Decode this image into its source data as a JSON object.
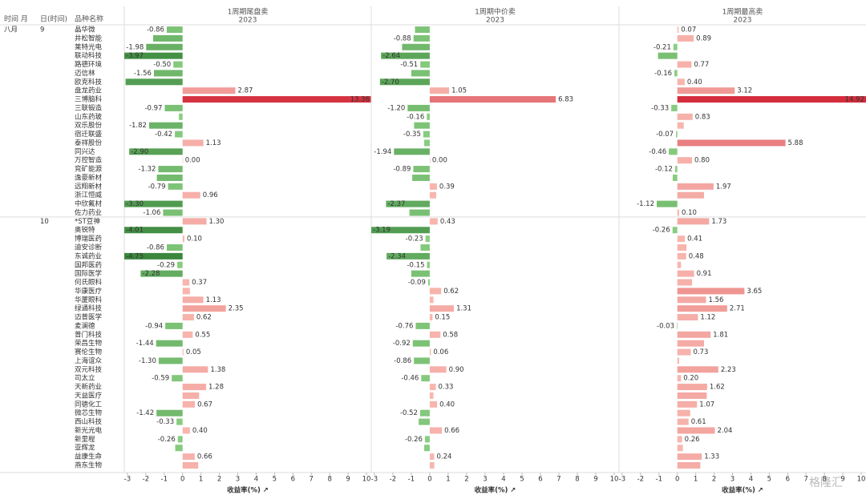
{
  "chart_data": {
    "type": "bar",
    "orientation": "horizontal",
    "row_headers": [
      "时间 月",
      "日(时间)",
      "品种名称"
    ],
    "xlabel": "收益率(%) ↗",
    "watermark": "格隆汇",
    "xlim": [
      -3.17,
      10.26
    ],
    "xticks": [
      -3,
      -2,
      -1,
      0,
      1,
      2,
      3,
      4,
      5,
      6,
      7,
      8,
      9,
      10
    ],
    "colors": {
      "positive_light": "#f8b9b1",
      "positive_dark": "#d42d3c",
      "negative_light": "#8dd184",
      "negative_dark": "#3a873d"
    },
    "months": [
      "八月",
      null,
      null,
      null,
      null,
      null,
      null,
      null,
      null,
      null,
      null,
      null,
      null,
      null,
      null,
      null,
      null,
      null,
      null,
      null,
      null,
      null,
      null,
      null,
      null,
      null,
      null,
      null,
      null,
      null,
      null,
      null,
      null,
      null,
      null,
      null,
      null,
      null,
      null,
      null,
      null,
      null,
      null,
      null,
      null,
      null,
      null,
      null,
      null,
      null,
      null
    ],
    "days": [
      9,
      null,
      null,
      null,
      null,
      null,
      null,
      null,
      null,
      null,
      null,
      null,
      null,
      null,
      null,
      null,
      null,
      null,
      null,
      null,
      null,
      null,
      10,
      null,
      null,
      null,
      null,
      null,
      null,
      null,
      null,
      null,
      null,
      null,
      null,
      null,
      null,
      null,
      null,
      null,
      null,
      null,
      null,
      null,
      null,
      null,
      null,
      null,
      null,
      null,
      null
    ],
    "categories": [
      "晶华微",
      "井松智能",
      "莱特光电",
      "联动科技",
      "路德环境",
      "迈信林",
      "欧克科技",
      "盘龙药业",
      "三博脑科",
      "三联锻造",
      "山东药玻",
      "双乐股份",
      "宿迁联盛",
      "泰祥股份",
      "同兴达",
      "万控智造",
      "兖矿能源",
      "逸豪新材",
      "远翔新材",
      "浙江恒威",
      "中欣氟材",
      "佐力药业",
      "*ST豆神",
      "奥锐特",
      "博瑞医药",
      "迪安诊断",
      "东诚药业",
      "国邦医药",
      "国际医学",
      "何氏眼科",
      "华康医疗",
      "华厦眼科",
      "绿通科技",
      "迈普医学",
      "麦澜德",
      "普门科技",
      "荣昌生物",
      "赛伦生物",
      "上海谊众",
      "双元科技",
      "司太立",
      "天新药业",
      "天益医疗",
      "同德化工",
      "微芯生物",
      "西山科技",
      "新光光电",
      "新里程",
      "亚辉龙",
      "益康生命",
      "燕东生物"
    ],
    "series": [
      {
        "name": "1周期尾盘卖",
        "subtitle": "2023",
        "values": [
          -0.86,
          -1.6,
          -1.98,
          -3.97,
          -0.5,
          -1.56,
          -3.1,
          2.87,
          13.36,
          -0.97,
          -0.2,
          -1.82,
          -0.42,
          1.13,
          -2.9,
          0,
          -1.32,
          -1.4,
          -0.79,
          0.96,
          -3.3,
          -1.06,
          1.3,
          -4.01,
          0.1,
          -0.86,
          -4.75,
          -0.29,
          -2.28,
          0.37,
          0.4,
          1.13,
          2.35,
          0.62,
          -0.94,
          0.55,
          -1.44,
          0.05,
          -1.3,
          1.38,
          -0.59,
          1.28,
          0.9,
          0.67,
          -1.42,
          -0.33,
          0.4,
          -0.26,
          -0.4,
          0.66,
          0.85
        ],
        "value_labels": [
          "-0.86",
          null,
          "-1.98",
          "-3.97",
          "-0.50",
          "-1.56",
          null,
          "2.87",
          "13.36",
          "-0.97",
          null,
          "-1.82",
          "-0.42",
          "1.13",
          "-2.90",
          "0.00",
          "-1.32",
          null,
          "-0.79",
          "0.96",
          "-3.30",
          "-1.06",
          "1.30",
          "-4.01",
          "0.10",
          "-0.86",
          "-4.75",
          "-0.29",
          "-2.28",
          "0.37",
          null,
          "1.13",
          "2.35",
          "0.62",
          "-0.94",
          "0.55",
          "-1.44",
          "0.05",
          "-1.30",
          "1.38",
          "-0.59",
          "1.28",
          null,
          "0.67",
          "-1.42",
          "-0.33",
          "0.40",
          "-0.26",
          null,
          "0.66",
          null
        ]
      },
      {
        "name": "1周期中价卖",
        "subtitle": "2023",
        "values": [
          -0.8,
          -0.88,
          -1.5,
          -2.64,
          -0.51,
          -1.0,
          -2.7,
          1.05,
          6.83,
          -1.2,
          -0.16,
          -0.85,
          -0.35,
          -0.3,
          -1.94,
          0,
          -0.89,
          -0.95,
          0.39,
          0.35,
          -2.37,
          -1.1,
          0.43,
          -3.19,
          -0.23,
          -0.5,
          -2.34,
          -0.15,
          -1.0,
          -0.09,
          0.62,
          0.2,
          1.31,
          0.15,
          -0.76,
          0.58,
          -0.92,
          0.06,
          -0.86,
          0.9,
          -0.46,
          0.33,
          0.2,
          0.4,
          -0.52,
          -0.6,
          0.66,
          -0.26,
          -0.3,
          0.24,
          0.25
        ],
        "value_labels": [
          null,
          "-0.88",
          null,
          "-2.64",
          "-0.51",
          null,
          "-2.70",
          "1.05",
          "6.83",
          "-1.20",
          "-0.16",
          null,
          "-0.35",
          null,
          "-1.94",
          "0.00",
          "-0.89",
          null,
          "0.39",
          null,
          "-2.37",
          null,
          "0.43",
          "-3.19",
          "-0.23",
          null,
          "-2.34",
          "-0.15",
          null,
          "-0.09",
          "0.62",
          null,
          "1.31",
          "0.15",
          "-0.76",
          "0.58",
          "-0.92",
          "0.06",
          "-0.86",
          "0.90",
          "-0.46",
          "0.33",
          null,
          "0.40",
          "-0.52",
          null,
          "0.66",
          "-0.26",
          null,
          "0.24",
          null
        ]
      },
      {
        "name": "1周期最高卖",
        "subtitle": "2023",
        "values": [
          0.07,
          0.89,
          -0.21,
          -1.05,
          0.77,
          -0.16,
          0.4,
          3.12,
          14.92,
          -0.33,
          0.83,
          0.35,
          -0.07,
          5.88,
          -0.46,
          0.8,
          -0.12,
          -0.25,
          1.97,
          1.45,
          -1.12,
          0.1,
          1.73,
          -0.26,
          0.41,
          0.5,
          0.48,
          0.2,
          0.91,
          0.8,
          3.65,
          1.56,
          2.71,
          1.12,
          -0.03,
          1.81,
          1.45,
          0.73,
          0.1,
          2.23,
          0.2,
          1.62,
          1.6,
          1.07,
          0.7,
          0.61,
          2.04,
          0.26,
          0.3,
          1.33,
          1.25
        ],
        "value_labels": [
          "0.07",
          "0.89",
          "-0.21",
          null,
          "0.77",
          "-0.16",
          "0.40",
          "3.12",
          "14.92",
          "-0.33",
          "0.83",
          null,
          "-0.07",
          "5.88",
          "-0.46",
          "0.80",
          "-0.12",
          null,
          "1.97",
          null,
          "-1.12",
          "0.10",
          "1.73",
          "-0.26",
          "0.41",
          null,
          "0.48",
          null,
          "0.91",
          null,
          "3.65",
          "1.56",
          "2.71",
          "1.12",
          "-0.03",
          "1.81",
          null,
          "0.73",
          null,
          "2.23",
          "0.20",
          "1.62",
          null,
          "1.07",
          null,
          "0.61",
          "2.04",
          "0.26",
          null,
          "1.33",
          null
        ]
      }
    ]
  }
}
